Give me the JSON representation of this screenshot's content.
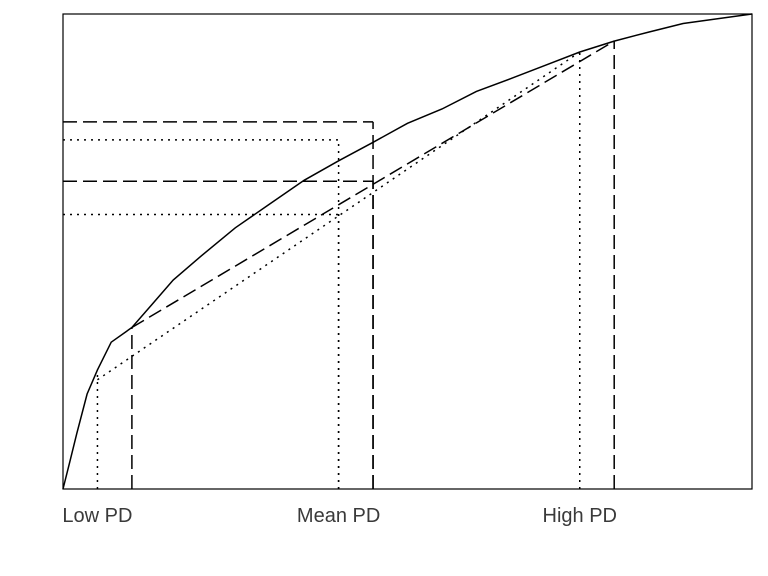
{
  "chart_data": {
    "type": "line",
    "title": "",
    "xlabel": "",
    "ylabel": "",
    "grid": false,
    "xlim": [
      0,
      1
    ],
    "ylim": [
      0,
      1
    ],
    "xticks": [
      {
        "x": 0.05,
        "label": "Low PD"
      },
      {
        "x": 0.4,
        "label": "Mean PD"
      },
      {
        "x": 0.75,
        "label": "High PD"
      }
    ],
    "curve": {
      "style": "solid",
      "x": [
        0,
        0.01,
        0.02,
        0.035,
        0.05,
        0.07,
        0.1,
        0.13,
        0.16,
        0.2,
        0.25,
        0.3,
        0.35,
        0.4,
        0.45,
        0.5,
        0.55,
        0.6,
        0.65,
        0.7,
        0.75,
        0.8,
        0.85,
        0.9,
        0.95,
        1.0
      ],
      "y": [
        0,
        0.058,
        0.117,
        0.2,
        0.251,
        0.309,
        0.34,
        0.39,
        0.44,
        0.49,
        0.55,
        0.6,
        0.65,
        0.691,
        0.73,
        0.77,
        0.8,
        0.837,
        0.864,
        0.892,
        0.92,
        0.943,
        0.962,
        0.98,
        0.99,
        1.0
      ]
    },
    "chords": [
      {
        "style": "dashed",
        "x": [
          0.1,
          0.8
        ],
        "y": [
          0.34,
          0.943
        ]
      },
      {
        "style": "dotted",
        "x": [
          0.05,
          0.75
        ],
        "y": [
          0.23,
          0.92
        ]
      }
    ],
    "guides": [
      {
        "style": "dashed",
        "x": 0.1,
        "y": 0.34,
        "axes": "vertical"
      },
      {
        "style": "dashed",
        "x": 0.45,
        "y": 0.773,
        "axes": "both"
      },
      {
        "style": "dashed",
        "x": 0.45,
        "y": 0.648,
        "axes": "both"
      },
      {
        "style": "dashed",
        "x": 0.8,
        "y": 0.943,
        "axes": "vertical"
      },
      {
        "style": "dotted",
        "x": 0.05,
        "y": 0.251,
        "axes": "vertical"
      },
      {
        "style": "dotted",
        "x": 0.4,
        "y": 0.735,
        "axes": "both"
      },
      {
        "style": "dotted",
        "x": 0.4,
        "y": 0.578,
        "axes": "both"
      },
      {
        "style": "dotted",
        "x": 0.75,
        "y": 0.92,
        "axes": "vertical"
      }
    ],
    "colors": {
      "lines": "#000000",
      "text": "#3a3a3a",
      "background": "#ffffff"
    }
  }
}
